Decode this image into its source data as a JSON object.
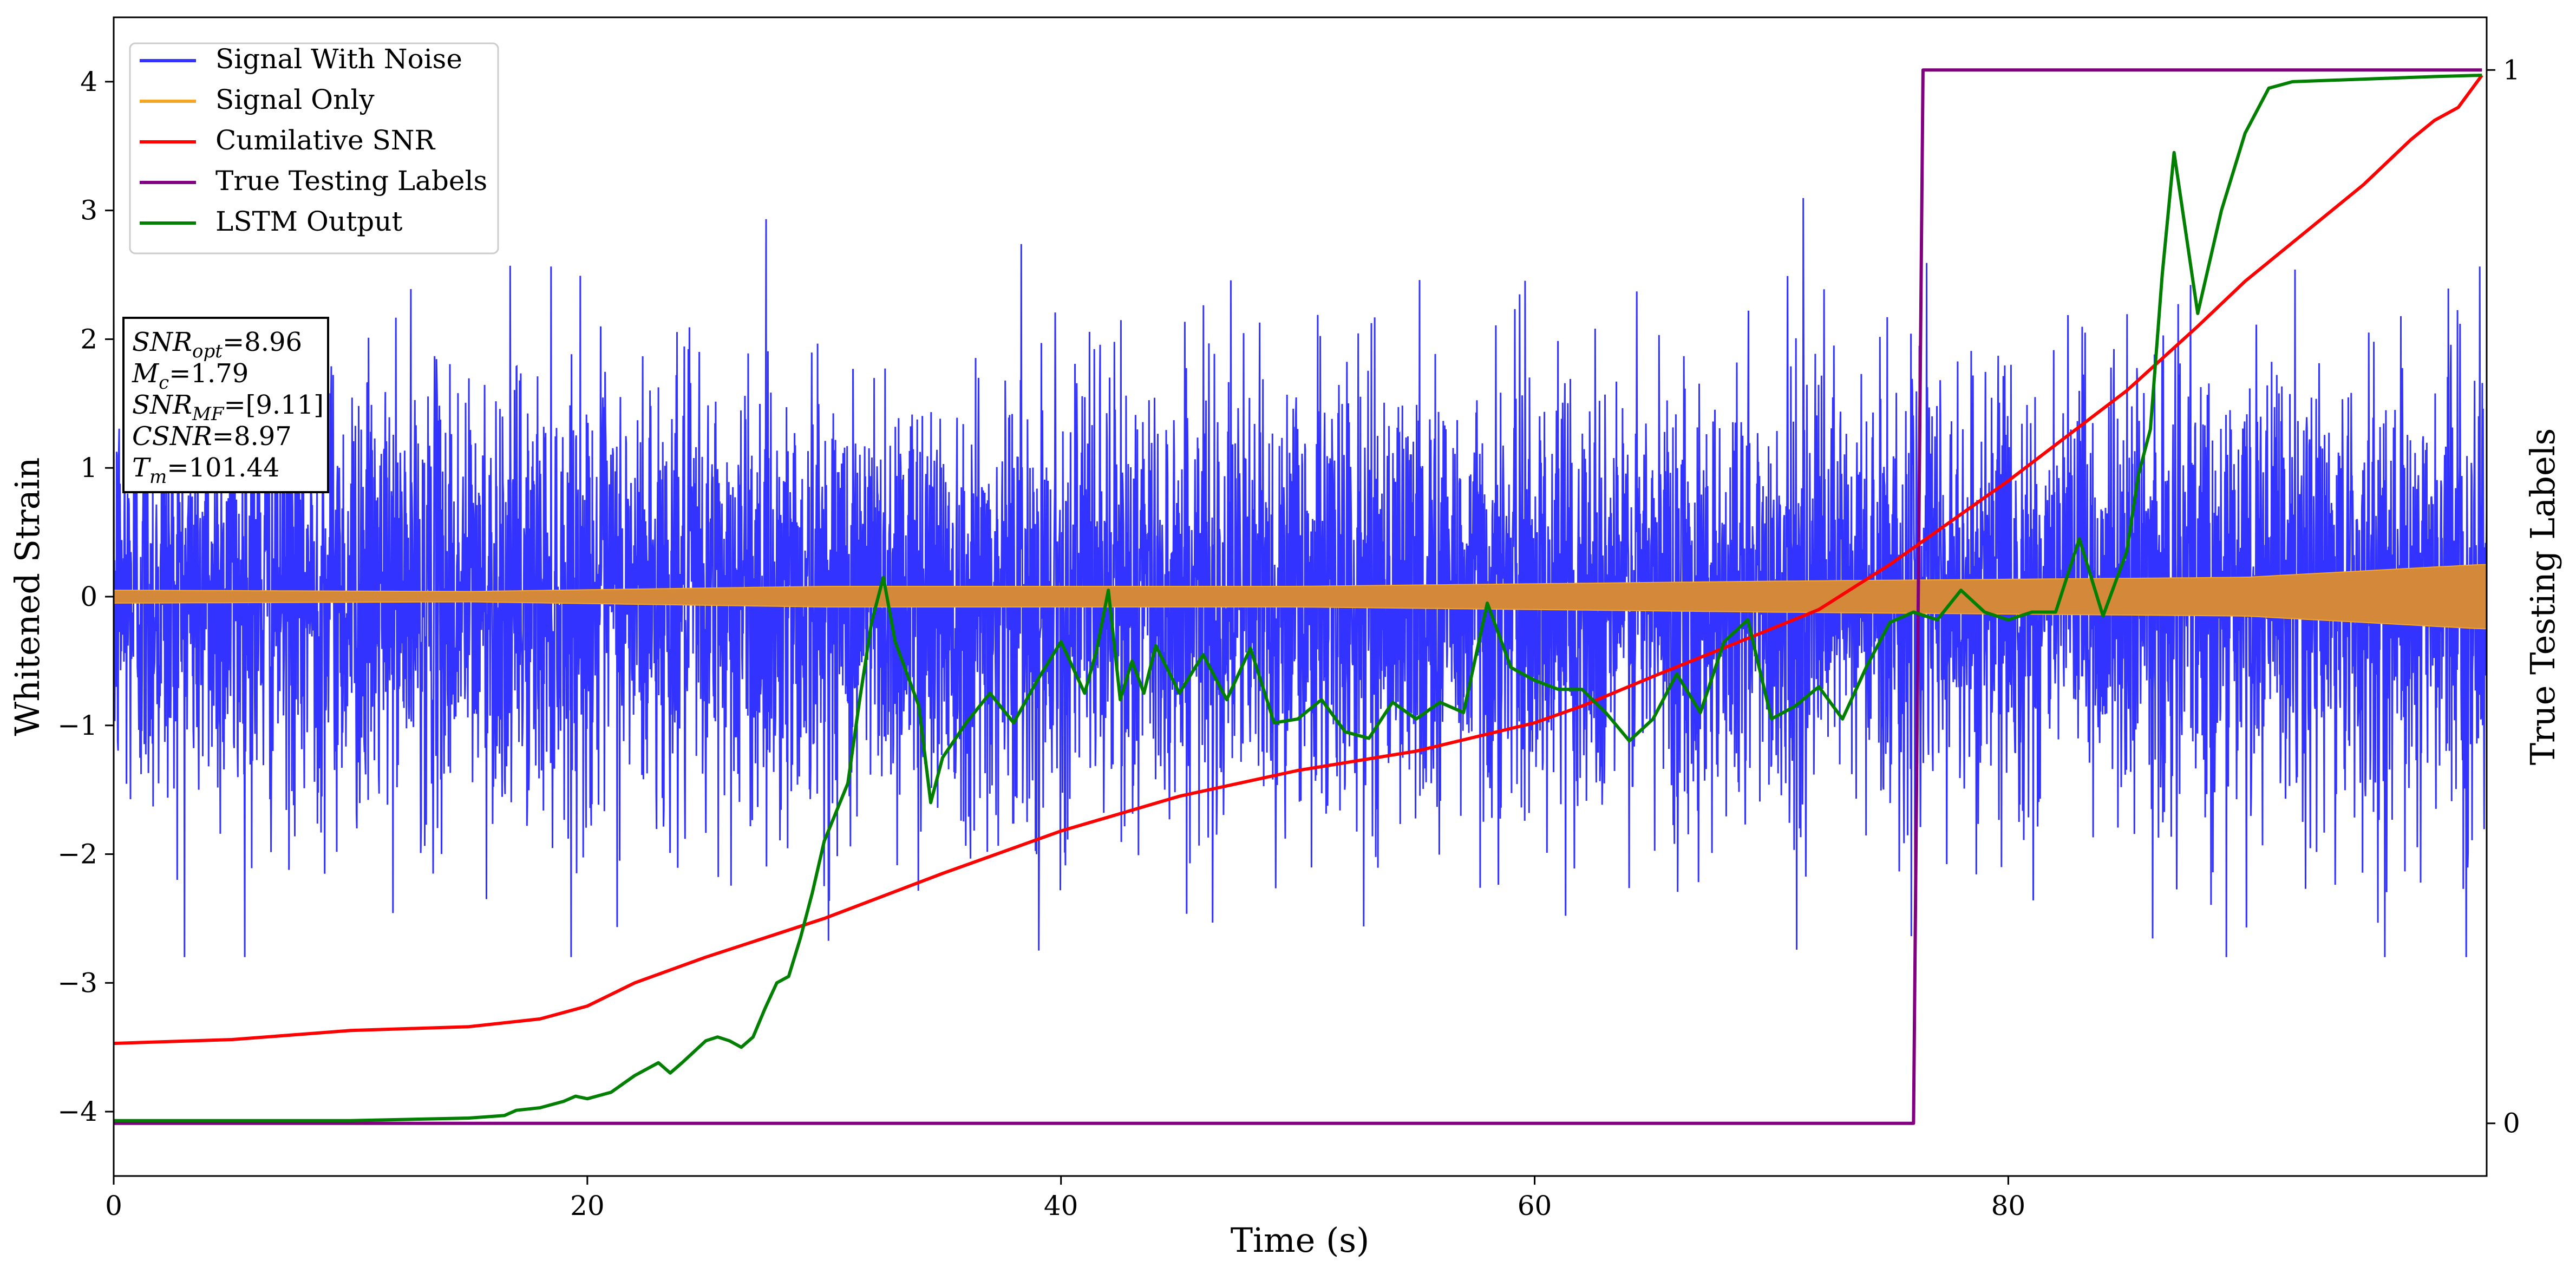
{
  "chart_data": {
    "type": "line",
    "xlabel": "Time (s)",
    "ylabel": "Whitened Strain",
    "y2label": "True Testing Labels",
    "xlim": [
      0,
      100.2
    ],
    "ylim": [
      -4.5,
      4.5
    ],
    "y2lim": [
      -0.05,
      1.05
    ],
    "xticks": [
      0,
      20,
      40,
      60,
      80
    ],
    "yticks": [
      -4,
      -3,
      -2,
      -1,
      0,
      1,
      2,
      3,
      4
    ],
    "y2ticks": [
      0,
      1
    ],
    "legend_position": "upper-left",
    "grid": false,
    "info_box": [
      {
        "sym": "SNR",
        "sub": "opt",
        "value": "=8.96"
      },
      {
        "sym": "M",
        "sub": "c",
        "value": "=1.79"
      },
      {
        "sym": "SNR",
        "sub": "MF",
        "value": "=[9.11]"
      },
      {
        "sym": "CSNR",
        "sub": "",
        "value": "=8.97"
      },
      {
        "sym": "T",
        "sub": "m",
        "value": "=101.44"
      }
    ],
    "series": [
      {
        "name": "Signal With Noise",
        "color": "#3333ff",
        "axis": "left",
        "kind": "noise",
        "sigma": 0.95,
        "peak_range": [
          -2.8,
          3.15
        ]
      },
      {
        "name": "Signal Only",
        "color": "#f5a623",
        "axis": "left",
        "kind": "chirp",
        "envelope": {
          "x": [
            0,
            15,
            30,
            50,
            70,
            90,
            100
          ],
          "amp": [
            0.05,
            0.04,
            0.08,
            0.08,
            0.12,
            0.15,
            0.25
          ]
        },
        "band_color": "#d4893a"
      },
      {
        "name": "Cumilative SNR",
        "color": "#ff0000",
        "axis": "left",
        "x": [
          0,
          5,
          10,
          15,
          18,
          20,
          22,
          25,
          30,
          35,
          40,
          45,
          50,
          55,
          60,
          62,
          65,
          70,
          72,
          75,
          80,
          85,
          88,
          90,
          92,
          95,
          97,
          98,
          99,
          100
        ],
        "y": [
          -3.47,
          -3.44,
          -3.37,
          -3.34,
          -3.28,
          -3.18,
          -3.0,
          -2.8,
          -2.5,
          -2.15,
          -1.82,
          -1.55,
          -1.35,
          -1.2,
          -0.98,
          -0.85,
          -0.62,
          -0.25,
          -0.1,
          0.25,
          0.9,
          1.6,
          2.1,
          2.45,
          2.75,
          3.2,
          3.55,
          3.7,
          3.8,
          4.05
        ]
      },
      {
        "name": "True Testing Labels",
        "color": "#800080",
        "axis": "right",
        "x": [
          0,
          76,
          76.4,
          100
        ],
        "y": [
          0,
          0,
          1,
          1
        ]
      },
      {
        "name": "LSTM Output",
        "color": "#007f00",
        "axis": "left",
        "x": [
          0,
          5,
          10,
          15,
          16.5,
          17,
          18,
          19,
          19.5,
          20,
          21,
          22,
          23,
          23.5,
          24,
          25,
          25.5,
          26,
          26.5,
          27,
          27.5,
          28,
          28.5,
          29,
          29.5,
          30,
          31,
          31.5,
          32,
          32.5,
          33,
          34,
          34.5,
          35,
          36,
          37,
          38,
          39,
          40,
          41,
          41.5,
          42,
          42.5,
          43,
          43.5,
          44,
          45,
          46,
          47,
          48,
          49,
          50,
          51,
          52,
          53,
          54,
          55,
          56,
          57,
          58,
          59,
          60,
          61,
          62,
          63,
          64,
          65,
          66,
          67,
          68,
          69,
          70,
          71,
          72,
          73,
          74,
          75,
          76,
          77,
          78,
          79,
          80,
          81,
          82,
          83,
          84,
          85,
          85.5,
          86,
          86.5,
          87,
          88,
          89,
          90,
          91,
          92,
          95,
          98,
          100
        ],
        "y": [
          -4.07,
          -4.07,
          -4.07,
          -4.05,
          -4.03,
          -3.99,
          -3.97,
          -3.92,
          -3.88,
          -3.9,
          -3.85,
          -3.72,
          -3.62,
          -3.7,
          -3.62,
          -3.45,
          -3.42,
          -3.45,
          -3.5,
          -3.42,
          -3.2,
          -3.0,
          -2.95,
          -2.65,
          -2.3,
          -1.9,
          -1.45,
          -0.8,
          -0.2,
          0.15,
          -0.35,
          -0.85,
          -1.6,
          -1.25,
          -0.98,
          -0.75,
          -0.98,
          -0.65,
          -0.35,
          -0.75,
          -0.42,
          0.05,
          -0.8,
          -0.5,
          -0.75,
          -0.38,
          -0.75,
          -0.45,
          -0.8,
          -0.4,
          -0.98,
          -0.95,
          -0.8,
          -1.05,
          -1.1,
          -0.82,
          -0.95,
          -0.82,
          -0.9,
          -0.05,
          -0.55,
          -0.65,
          -0.72,
          -0.72,
          -0.9,
          -1.12,
          -0.95,
          -0.6,
          -0.9,
          -0.35,
          -0.18,
          -0.95,
          -0.85,
          -0.7,
          -0.95,
          -0.55,
          -0.2,
          -0.12,
          -0.18,
          0.05,
          -0.12,
          -0.18,
          -0.12,
          -0.12,
          0.45,
          -0.15,
          0.35,
          0.95,
          1.3,
          2.5,
          3.45,
          2.2,
          3.0,
          3.6,
          3.95,
          4.0,
          4.02,
          4.04,
          4.05
        ]
      }
    ]
  }
}
